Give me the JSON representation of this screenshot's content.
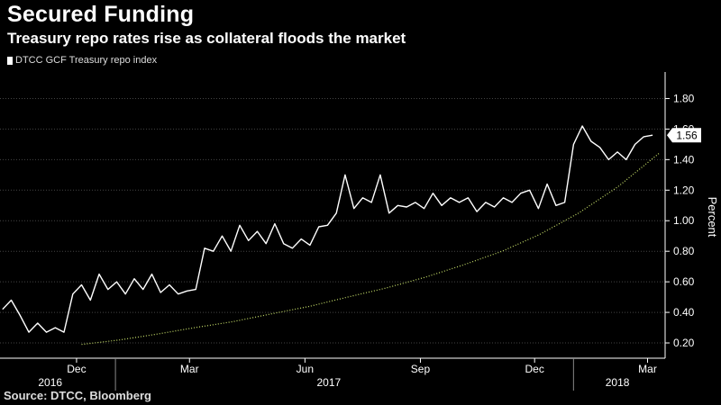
{
  "header": {
    "title": "Secured Funding",
    "subtitle": "Treasury repo rates rise as collateral floods the market"
  },
  "footer": {
    "source": "Source: DTCC, Bloomberg"
  },
  "colors": {
    "line": "#ffffff",
    "trend": "#c8e06a",
    "background": "#000000",
    "grid": "#444444"
  },
  "chart_data": {
    "type": "line",
    "series": [
      {
        "name": "DTCC GCF Treasury repo index",
        "last_value_label": "1.56",
        "x": [
          "2016-10-03",
          "2016-10-10",
          "2016-10-17",
          "2016-10-24",
          "2016-10-31",
          "2016-11-07",
          "2016-11-14",
          "2016-11-21",
          "2016-11-28",
          "2016-12-05",
          "2016-12-12",
          "2016-12-19",
          "2016-12-26",
          "2017-01-02",
          "2017-01-09",
          "2017-01-16",
          "2017-01-23",
          "2017-01-30",
          "2017-02-06",
          "2017-02-13",
          "2017-02-20",
          "2017-02-27",
          "2017-03-06",
          "2017-03-13",
          "2017-03-20",
          "2017-03-27",
          "2017-04-03",
          "2017-04-10",
          "2017-04-17",
          "2017-04-24",
          "2017-05-01",
          "2017-05-08",
          "2017-05-15",
          "2017-05-22",
          "2017-05-29",
          "2017-06-05",
          "2017-06-12",
          "2017-06-19",
          "2017-06-26",
          "2017-07-03",
          "2017-07-10",
          "2017-07-17",
          "2017-07-24",
          "2017-07-31",
          "2017-08-07",
          "2017-08-14",
          "2017-08-21",
          "2017-08-28",
          "2017-09-04",
          "2017-09-11",
          "2017-09-18",
          "2017-09-25",
          "2017-10-02",
          "2017-10-09",
          "2017-10-16",
          "2017-10-23",
          "2017-10-30",
          "2017-11-06",
          "2017-11-13",
          "2017-11-20",
          "2017-11-27",
          "2017-12-04",
          "2017-12-11",
          "2017-12-18",
          "2017-12-25",
          "2018-01-01",
          "2018-01-08",
          "2018-01-15",
          "2018-01-22",
          "2018-01-29",
          "2018-02-05",
          "2018-02-12",
          "2018-02-19",
          "2018-02-26",
          "2018-03-05"
        ],
        "values": [
          0.42,
          0.48,
          0.38,
          0.27,
          0.33,
          0.27,
          0.3,
          0.27,
          0.52,
          0.58,
          0.48,
          0.65,
          0.55,
          0.6,
          0.52,
          0.62,
          0.55,
          0.65,
          0.53,
          0.58,
          0.52,
          0.54,
          0.55,
          0.82,
          0.8,
          0.9,
          0.8,
          0.97,
          0.87,
          0.93,
          0.85,
          0.98,
          0.85,
          0.82,
          0.88,
          0.84,
          0.96,
          0.97,
          1.05,
          1.3,
          1.08,
          1.15,
          1.12,
          1.3,
          1.05,
          1.1,
          1.09,
          1.12,
          1.08,
          1.18,
          1.1,
          1.15,
          1.12,
          1.15,
          1.06,
          1.12,
          1.09,
          1.15,
          1.12,
          1.18,
          1.2,
          1.08,
          1.24,
          1.1,
          1.12,
          1.5,
          1.62,
          1.52,
          1.48,
          1.4,
          1.45,
          1.4,
          1.5,
          1.55,
          1.56
        ]
      },
      {
        "name": "",
        "style": "dotted",
        "x": [
          "2016-12-05",
          "2017-01-05",
          "2017-02-05",
          "2017-03-05",
          "2017-04-05",
          "2017-05-05",
          "2017-06-05",
          "2017-07-05",
          "2017-08-05",
          "2017-09-05",
          "2017-10-05",
          "2017-11-05",
          "2017-12-05",
          "2018-01-05",
          "2018-02-05",
          "2018-03-10"
        ],
        "values": [
          0.19,
          0.22,
          0.26,
          0.3,
          0.34,
          0.39,
          0.44,
          0.5,
          0.56,
          0.63,
          0.71,
          0.8,
          0.91,
          1.05,
          1.22,
          1.44
        ]
      }
    ],
    "x_ticks": [
      {
        "date": "2016-12-01",
        "label": "Dec"
      },
      {
        "date": "2017-03-01",
        "label": "Mar"
      },
      {
        "date": "2017-06-01",
        "label": "Jun"
      },
      {
        "date": "2017-09-01",
        "label": "Sep"
      },
      {
        "date": "2017-12-01",
        "label": "Dec"
      },
      {
        "date": "2018-03-01",
        "label": "Mar"
      }
    ],
    "year_labels": [
      {
        "date": "2016-11-10",
        "label": "2016"
      },
      {
        "date": "2017-06-20",
        "label": "2017"
      },
      {
        "date": "2018-02-05",
        "label": "2018"
      }
    ],
    "year_dividers": [
      "2017-01-01",
      "2018-01-01"
    ],
    "xlim": [
      "2016-10-01",
      "2018-03-15"
    ],
    "ylim": [
      0.1,
      1.95
    ],
    "y_ticks": [
      0.2,
      0.4,
      0.6,
      0.8,
      1.0,
      1.2,
      1.4,
      1.6,
      1.8
    ],
    "y_tick_labels": [
      "0.20",
      "0.40",
      "0.60",
      "0.80",
      "1.00",
      "1.20",
      "1.40",
      "1.60",
      "1.80"
    ],
    "ylabel": "Percent",
    "grid": "horizontal",
    "legend_position": "top-left"
  }
}
